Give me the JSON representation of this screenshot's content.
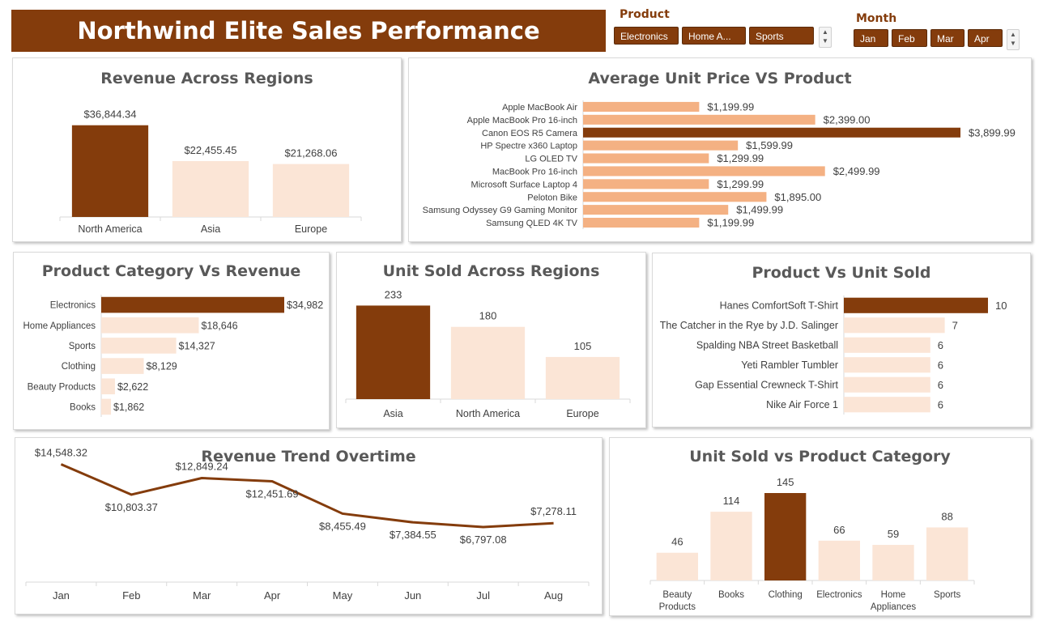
{
  "header": {
    "title": "Northwind Elite Sales Performance"
  },
  "slicers": {
    "product": {
      "title": "Product",
      "items": [
        "Electronics",
        "Home A...",
        "Sports"
      ]
    },
    "month": {
      "title": "Month",
      "items": [
        "Jan",
        "Feb",
        "Mar",
        "Apr"
      ]
    }
  },
  "colors": {
    "highlight": "#843C0C",
    "light": "#FBE5D6",
    "medium": "#F4B183",
    "banner": "#843C0C"
  },
  "chart_data": [
    {
      "id": "revenue-regions",
      "type": "bar",
      "title": "Revenue Across Regions",
      "categories": [
        "North America",
        "Asia",
        "Europe"
      ],
      "values": [
        36844.34,
        22455.45,
        21268.06
      ],
      "labels": [
        "$36,844.34",
        "$22,455.45",
        "$21,268.06"
      ],
      "ylim": [
        0,
        40000
      ],
      "highlight_index": 0,
      "legend": "none",
      "grid": false
    },
    {
      "id": "avg-unit-price",
      "type": "bar",
      "orientation": "horizontal",
      "title": "Average Unit Price VS Product",
      "categories": [
        "Apple MacBook Air",
        "Apple MacBook Pro 16-inch",
        "Canon EOS R5 Camera",
        "HP Spectre x360 Laptop",
        "LG OLED TV",
        "MacBook Pro 16-inch",
        "Microsoft Surface Laptop 4",
        "Peloton Bike",
        "Samsung Odyssey G9 Gaming Monitor",
        "Samsung QLED 4K TV"
      ],
      "values": [
        1199.99,
        2399.0,
        3899.99,
        1599.99,
        1299.99,
        2499.99,
        1299.99,
        1895.0,
        1499.99,
        1199.99
      ],
      "labels": [
        "$1,199.99",
        "$2,399.00",
        "$3,899.99",
        "$1,599.99",
        "$1,299.99",
        "$2,499.99",
        "$1,299.99",
        "$1,895.00",
        "$1,499.99",
        "$1,199.99"
      ],
      "xlim": [
        0,
        3899.99
      ],
      "highlight_index": 2,
      "legend": "none",
      "grid": false
    },
    {
      "id": "category-revenue",
      "type": "bar",
      "orientation": "horizontal",
      "title": "Product Category Vs Revenue",
      "categories": [
        "Electronics",
        "Home Appliances",
        "Sports",
        "Clothing",
        "Beauty Products",
        "Books"
      ],
      "values": [
        34982,
        18646,
        14327,
        8129,
        2622,
        1862
      ],
      "labels": [
        "$34,982",
        "$18,646",
        "$14,327",
        "$8,129",
        "$2,622",
        "$1,862"
      ],
      "xlim": [
        0,
        34982
      ],
      "highlight_index": 0,
      "legend": "none",
      "grid": false
    },
    {
      "id": "units-regions",
      "type": "bar",
      "title": "Unit Sold Across Regions",
      "categories": [
        "Asia",
        "North America",
        "Europe"
      ],
      "values": [
        233,
        180,
        105
      ],
      "labels": [
        "233",
        "180",
        "105"
      ],
      "ylim": [
        0,
        250
      ],
      "highlight_index": 0,
      "legend": "none",
      "grid": false
    },
    {
      "id": "product-units",
      "type": "bar",
      "orientation": "horizontal",
      "title": "Product Vs Unit Sold",
      "categories": [
        "Hanes ComfortSoft T-Shirt",
        "The Catcher in the Rye by J.D. Salinger",
        "Spalding NBA Street Basketball",
        "Yeti Rambler Tumbler",
        "Gap Essential Crewneck T-Shirt",
        "Nike Air Force 1"
      ],
      "values": [
        10,
        7,
        6,
        6,
        6,
        6
      ],
      "labels": [
        "10",
        "7",
        "6",
        "6",
        "6",
        "6"
      ],
      "xlim": [
        0,
        10
      ],
      "highlight_index": 0,
      "legend": "none",
      "grid": false
    },
    {
      "id": "revenue-trend",
      "type": "line",
      "title": "Revenue Trend Overtime",
      "categories": [
        "Jan",
        "Feb",
        "Mar",
        "Apr",
        "May",
        "Jun",
        "Jul",
        "Aug"
      ],
      "values": [
        14548.32,
        10803.37,
        12849.24,
        12451.69,
        8455.49,
        7384.55,
        6797.08,
        7278.11
      ],
      "labels": [
        "$14,548.32",
        "$10,803.37",
        "$12,849.24",
        "$12,451.69",
        "$8,455.49",
        "$7,384.55",
        "$6,797.08",
        "$7,278.11"
      ],
      "ylim": [
        0,
        16000
      ],
      "legend": "none",
      "grid": false
    },
    {
      "id": "category-units",
      "type": "bar",
      "title": "Unit Sold vs Product Category",
      "categories": [
        [
          "Beauty",
          "Products"
        ],
        [
          "Books"
        ],
        [
          "Clothing"
        ],
        [
          "Electronics"
        ],
        [
          "Home",
          "Appliances"
        ],
        [
          "Sports"
        ]
      ],
      "values": [
        46,
        114,
        145,
        66,
        59,
        88
      ],
      "labels": [
        "46",
        "114",
        "145",
        "66",
        "59",
        "88"
      ],
      "ylim": [
        0,
        145
      ],
      "highlight_index": 2,
      "legend": "none",
      "grid": false
    }
  ]
}
